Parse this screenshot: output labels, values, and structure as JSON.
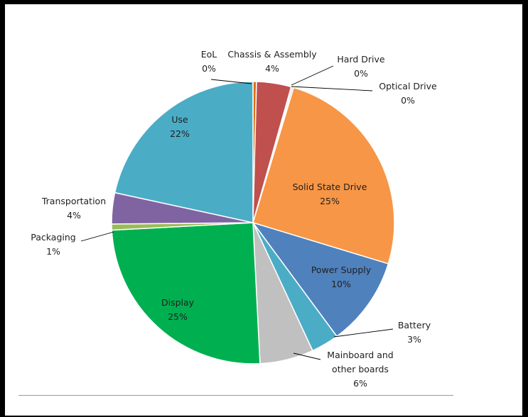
{
  "chart_data": {
    "type": "pie",
    "title": "",
    "slices": [
      {
        "label": "EoL",
        "value_label": "0%",
        "value": 0.4,
        "color": "#e26b0a"
      },
      {
        "label": "Chassis & Assembly",
        "value_label": "4%",
        "value": 4,
        "color": "#c0504d"
      },
      {
        "label": "Hard Drive",
        "value_label": "0%",
        "value": 0.15,
        "color": "#9bbb59"
      },
      {
        "label": "Optical Drive",
        "value_label": "0%",
        "value": 0.15,
        "color": "#8064a2"
      },
      {
        "label": "Solid State Drive",
        "value_label": "25%",
        "value": 25.3,
        "color": "#f79646"
      },
      {
        "label": "Power Supply",
        "value_label": "10%",
        "value": 10.3,
        "color": "#4f81bd"
      },
      {
        "label": "Battery",
        "value_label": "3%",
        "value": 3.2,
        "color": "#4bacc6"
      },
      {
        "label": "Mainboard and other boards",
        "value_label": "6%",
        "value": 6.2,
        "color": "#c0c0c0"
      },
      {
        "label": "Display",
        "value_label": "25%",
        "value": 25.2,
        "color": "#00b050"
      },
      {
        "label": "Packaging",
        "value_label": "1%",
        "value": 0.7,
        "color": "#9bbb59"
      },
      {
        "label": "Transportation",
        "value_label": "4%",
        "value": 3.6,
        "color": "#8064a2"
      },
      {
        "label": "Use",
        "value_label": "22%",
        "value": 21.8,
        "color": "#4bacc6"
      }
    ],
    "start_angle_deg": 0,
    "direction": "clockwise",
    "legend": "none"
  }
}
